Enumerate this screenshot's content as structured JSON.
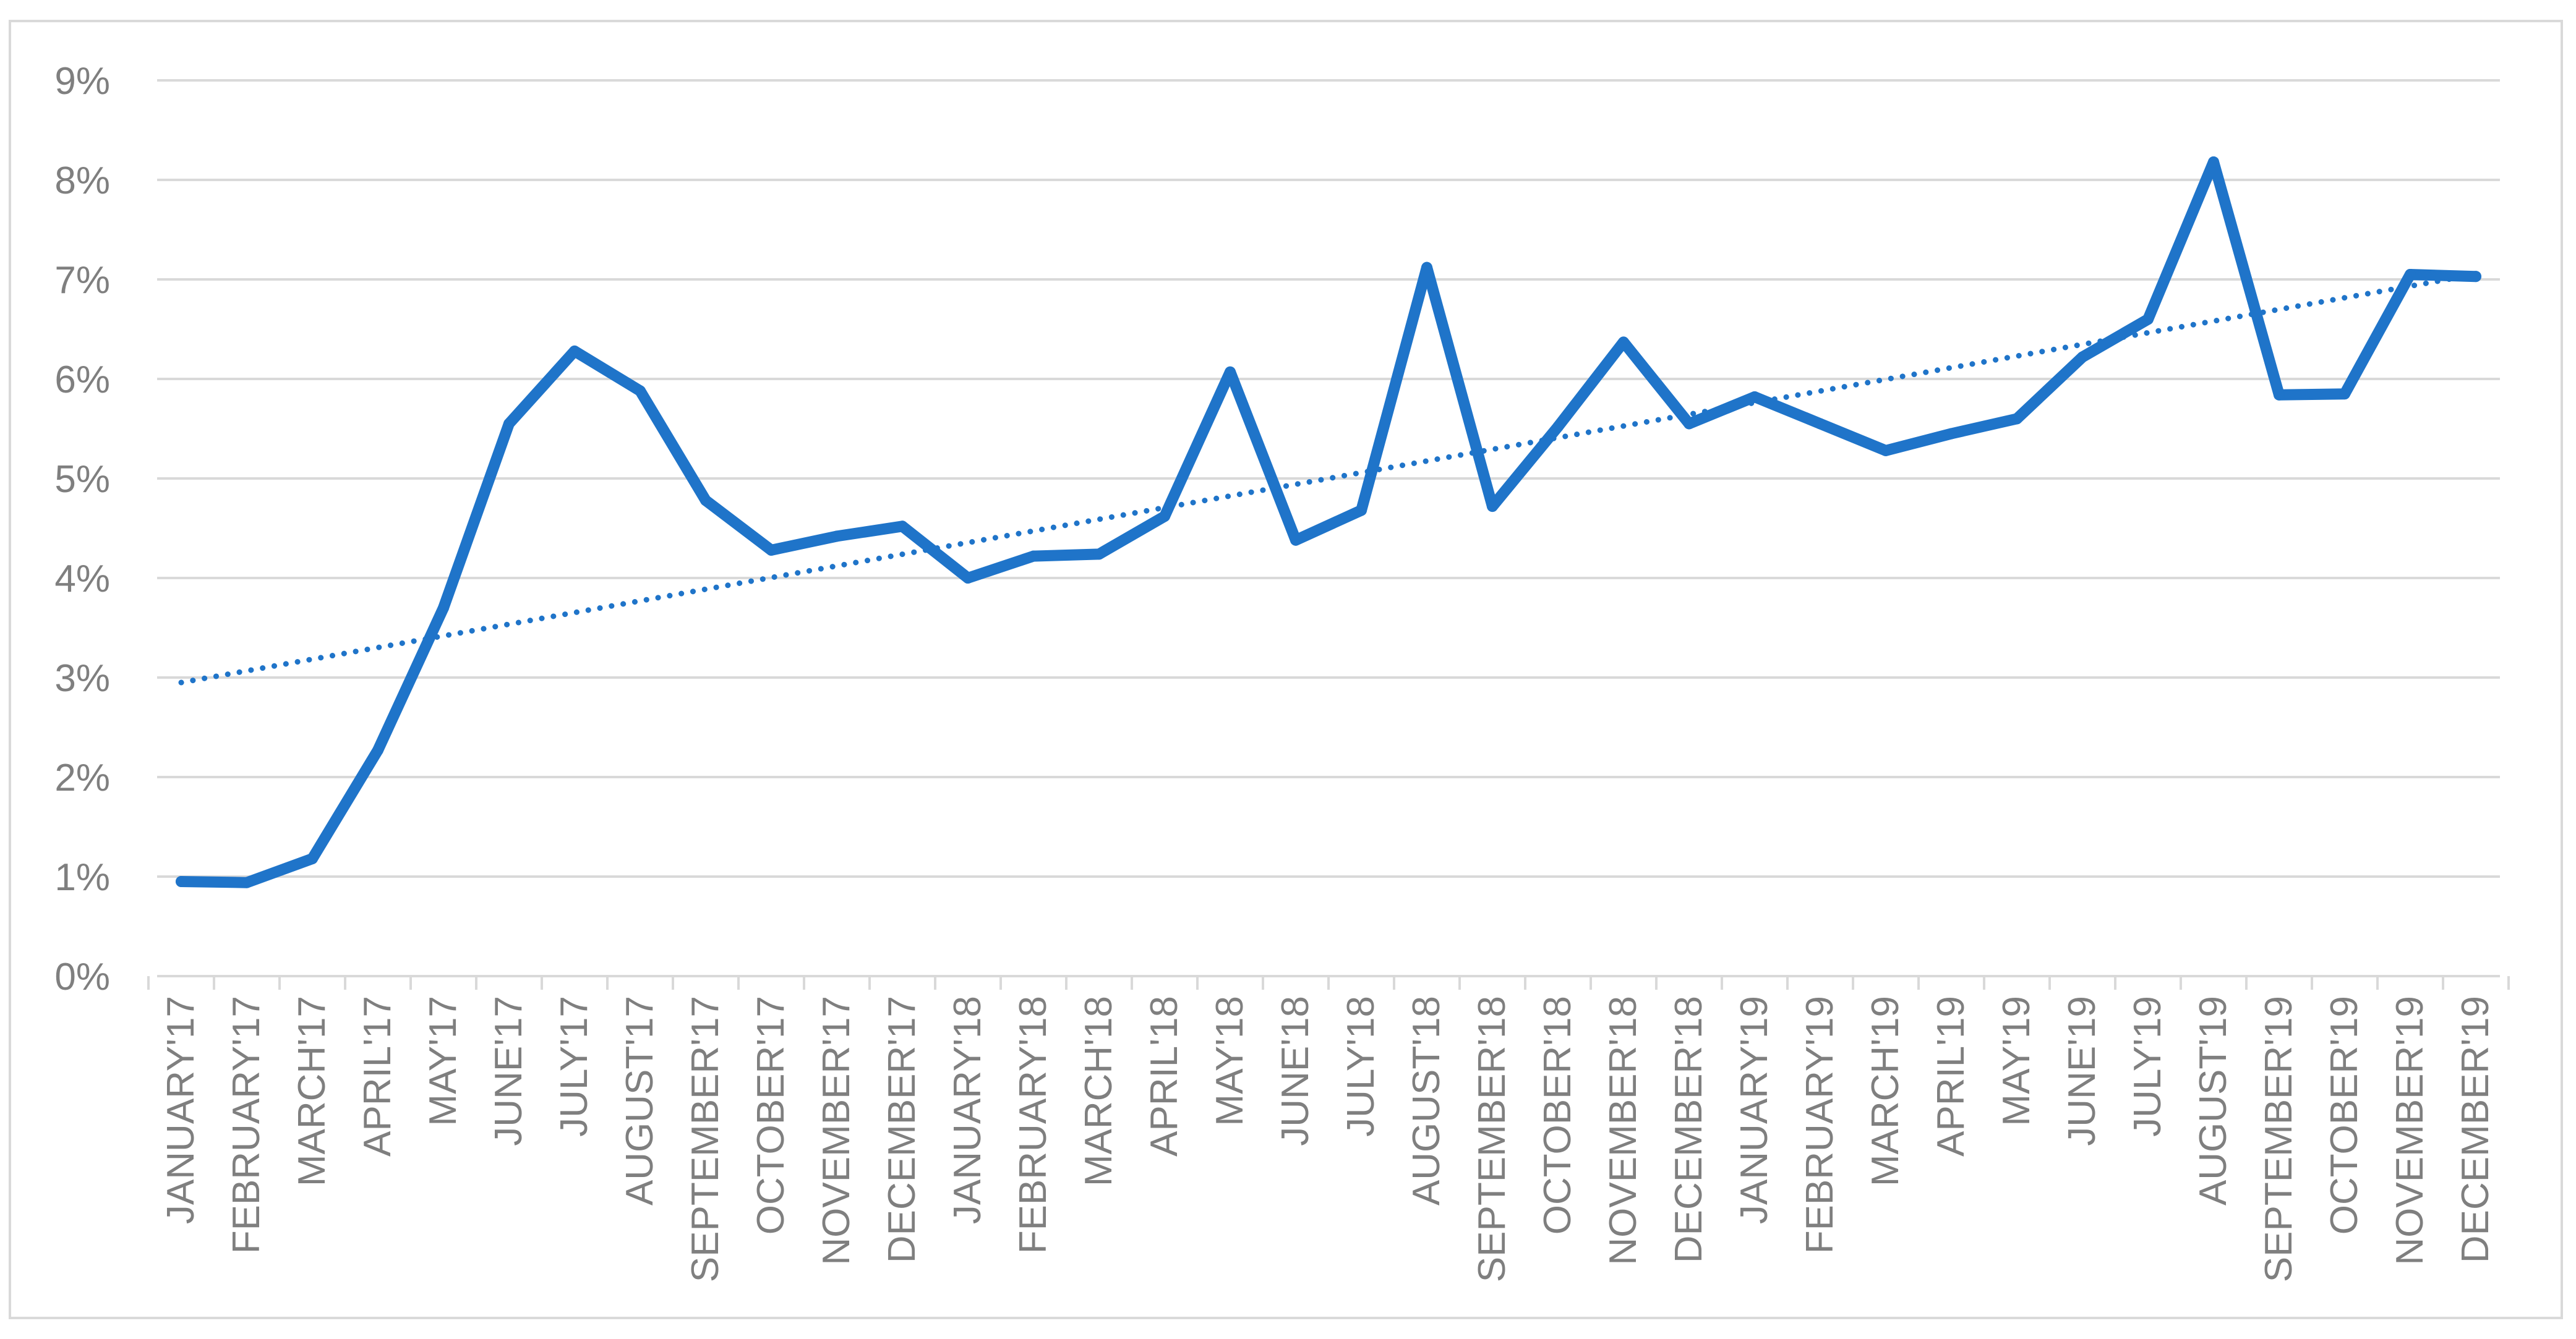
{
  "chart_data": {
    "type": "line",
    "title": "",
    "xlabel": "",
    "ylabel": "",
    "ylim": [
      0,
      9
    ],
    "y_ticks": [
      "0%",
      "1%",
      "2%",
      "3%",
      "4%",
      "5%",
      "6%",
      "7%",
      "8%",
      "9%"
    ],
    "grid": true,
    "legend": "none",
    "categories": [
      "JANUARY'17",
      "FEBRUARY'17",
      "MARCH'17",
      "APRIL'17",
      "MAY'17",
      "JUNE'17",
      "JULY'17",
      "AUGUST'17",
      "SEPTEMBER'17",
      "OCTOBER'17",
      "NOVEMBER'17",
      "DECEMBER'17",
      "JANUARY'18",
      "FEBRUARY'18",
      "MARCH'18",
      "APRIL'18",
      "MAY'18",
      "JUNE'18",
      "JULY'18",
      "AUGUST'18",
      "SEPTEMBER'18",
      "OCTOBER'18",
      "NOVEMBER'18",
      "DECEMBER'18",
      "JANUARY'19",
      "FEBRUARY'19",
      "MARCH'19",
      "APRIL'19",
      "MAY'19",
      "JUNE'19",
      "JULY'19",
      "AUGUST'19",
      "SEPTEMBER'19",
      "OCTOBER'19",
      "NOVEMBER'19",
      "DECEMBER'19"
    ],
    "series": [
      {
        "values": [
          0.95,
          0.94,
          1.18,
          2.27,
          3.7,
          5.55,
          6.28,
          5.88,
          4.78,
          4.28,
          4.42,
          4.52,
          4.0,
          4.22,
          4.24,
          4.62,
          6.07,
          4.38,
          4.68,
          7.12,
          4.72,
          5.52,
          6.37,
          5.55,
          5.82,
          5.55,
          5.28,
          5.45,
          5.6,
          6.22,
          6.6,
          8.18,
          5.84,
          5.85,
          7.05,
          7.03
        ],
        "color": "#1f74c9"
      }
    ],
    "trendline": {
      "type": "linear",
      "start": 2.95,
      "end": 7.05,
      "style": "dotted",
      "color": "#1f74c9"
    }
  }
}
